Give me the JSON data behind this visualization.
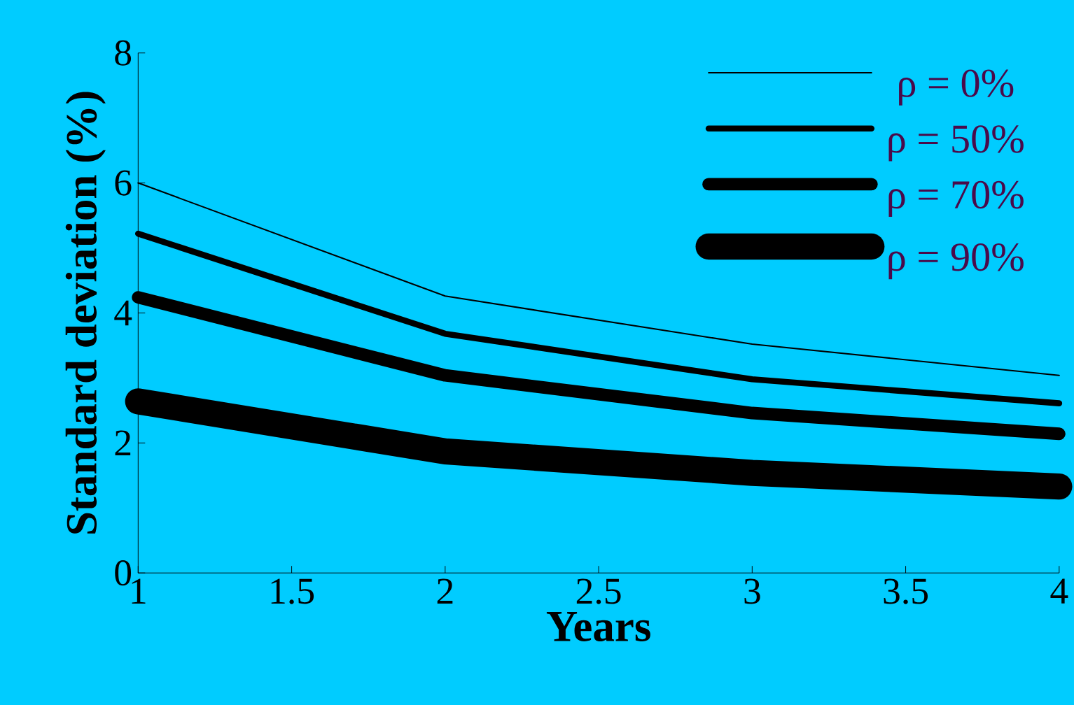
{
  "chart_data": {
    "type": "line",
    "xlabel": "Years",
    "ylabel": "Standard deviation (%)",
    "x": [
      1,
      2,
      3,
      4
    ],
    "xlim": [
      1,
      4
    ],
    "xticks": [
      1,
      1.5,
      2,
      2.5,
      3,
      3.5,
      4
    ],
    "ylim": [
      0,
      8
    ],
    "yticks": [
      0,
      2,
      4,
      6,
      8
    ],
    "legend": "top right",
    "grid": false,
    "marker": "none",
    "line_style": "solid",
    "series": [
      {
        "name": "ρ = 0%",
        "color": "#000000",
        "values": [
          6.0,
          4.26,
          3.52,
          3.04
        ]
      },
      {
        "name": "ρ = 50%",
        "color": "#000000",
        "values": [
          5.22,
          3.68,
          2.98,
          2.61
        ]
      },
      {
        "name": "ρ = 70%",
        "color": "#000000",
        "values": [
          4.24,
          3.04,
          2.46,
          2.14
        ]
      },
      {
        "name": "ρ = 90%",
        "color": "#000000",
        "values": [
          2.64,
          1.87,
          1.54,
          1.33
        ]
      }
    ]
  }
}
